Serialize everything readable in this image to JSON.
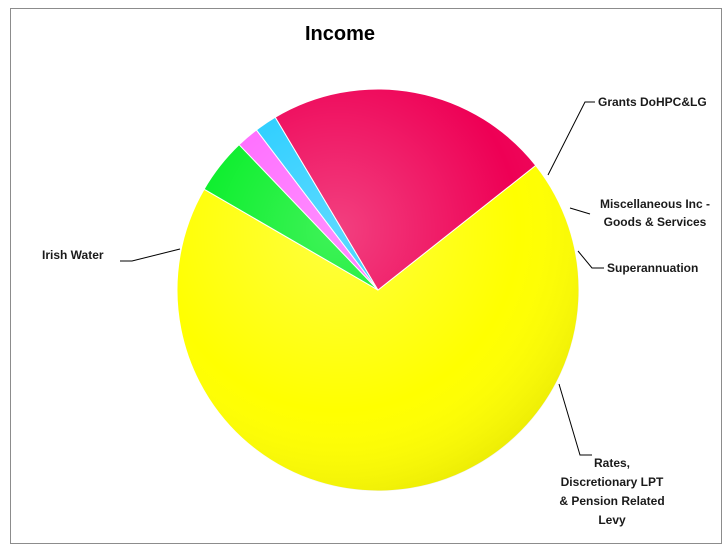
{
  "chart_data": {
    "type": "pie",
    "title": "Income",
    "slices": [
      {
        "label": "Irish Water",
        "lines": [
          "Irish Water"
        ],
        "value": 69.0,
        "color": "#ffff00"
      },
      {
        "label": "Grants DoHPC&LG",
        "lines": [
          "Grants DoHPC&LG"
        ],
        "value": 4.5,
        "color": "#00ee22"
      },
      {
        "label": "Miscellaneous Inc - Goods & Services",
        "lines": [
          "Miscellaneous Inc -",
          "Goods & Services"
        ],
        "value": 1.8,
        "color": "#ff66ff"
      },
      {
        "label": "Superannuation",
        "lines": [
          "Superannuation"
        ],
        "value": 1.8,
        "color": "#22ccff"
      },
      {
        "label": "Rates, Discretionary LPT & Pension Related Levy",
        "lines": [
          "Rates,",
          "Discretionary LPT",
          "& Pension Related",
          "Levy"
        ],
        "value": 22.9,
        "color": "#ee0055"
      }
    ]
  }
}
